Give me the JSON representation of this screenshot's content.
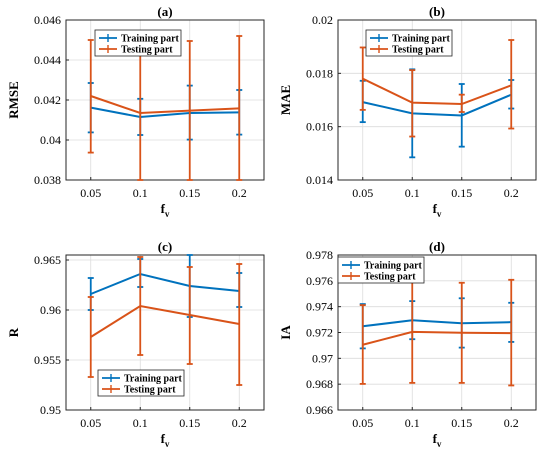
{
  "colors": {
    "training": "#0072bd",
    "testing": "#d95319",
    "axis": "#262626",
    "grid": "#dcdcdc"
  },
  "chart_data": [
    {
      "type": "line",
      "title": "(a)",
      "xlabel": "f",
      "xlabel_sub": "v",
      "ylabel": "RMSE",
      "x": [
        0.05,
        0.1,
        0.15,
        0.2
      ],
      "xticks": [
        "0.05",
        "0.1",
        "0.15",
        "0.2"
      ],
      "xlim": [
        0.025,
        0.225
      ],
      "ylim": [
        0.038,
        0.046
      ],
      "yticks": [
        0.038,
        0.04,
        0.042,
        0.044,
        0.046
      ],
      "yticklabels": [
        "0.038",
        "0.04",
        "0.042",
        "0.044",
        "0.046"
      ],
      "grid": true,
      "legend_position": "top-left",
      "series": [
        {
          "name": "Training part",
          "values": [
            0.04162,
            0.04115,
            0.04135,
            0.04138
          ],
          "err_low": [
            0.04038,
            0.04025,
            0.04002,
            0.04027
          ],
          "err_high": [
            0.04285,
            0.04206,
            0.04272,
            0.0425
          ]
        },
        {
          "name": "Testing part",
          "values": [
            0.0422,
            0.04135,
            0.04147,
            0.04158
          ],
          "err_low": [
            0.03937,
            0.038,
            0.038,
            0.038
          ],
          "err_high": [
            0.045,
            0.045,
            0.04495,
            0.0452
          ]
        }
      ]
    },
    {
      "type": "line",
      "title": "(b)",
      "xlabel": "f",
      "xlabel_sub": "v",
      "ylabel": "MAE",
      "x": [
        0.05,
        0.1,
        0.15,
        0.2
      ],
      "xticks": [
        "0.05",
        "0.1",
        "0.15",
        "0.2"
      ],
      "xlim": [
        0.025,
        0.225
      ],
      "ylim": [
        0.014,
        0.02
      ],
      "yticks": [
        0.014,
        0.016,
        0.018,
        0.02
      ],
      "yticklabels": [
        "0.014",
        "0.016",
        "0.018",
        "0.02"
      ],
      "grid": true,
      "legend_position": "top-left",
      "series": [
        {
          "name": "Training part",
          "values": [
            0.01692,
            0.0165,
            0.01642,
            0.0172
          ],
          "err_low": [
            0.01617,
            0.01485,
            0.01525,
            0.01668
          ],
          "err_high": [
            0.01772,
            0.01815,
            0.0176,
            0.01775
          ]
        },
        {
          "name": "Testing part",
          "values": [
            0.0178,
            0.0169,
            0.01685,
            0.01755
          ],
          "err_low": [
            0.01663,
            0.01563,
            0.01655,
            0.01593
          ],
          "err_high": [
            0.01897,
            0.01812,
            0.0172,
            0.01925
          ]
        }
      ]
    },
    {
      "type": "line",
      "title": "(c)",
      "xlabel": "f",
      "xlabel_sub": "v",
      "ylabel": "R",
      "x": [
        0.05,
        0.1,
        0.15,
        0.2
      ],
      "xticks": [
        "0.05",
        "0.1",
        "0.15",
        "0.2"
      ],
      "xlim": [
        0.025,
        0.225
      ],
      "ylim": [
        0.95,
        0.9655
      ],
      "yticks": [
        0.95,
        0.955,
        0.96,
        0.965
      ],
      "yticklabels": [
        "0.95",
        "0.955",
        "0.96",
        "0.965"
      ],
      "grid": true,
      "legend_position": "bottom-center",
      "series": [
        {
          "name": "Training part",
          "values": [
            0.9616,
            0.9636,
            0.9624,
            0.9619
          ],
          "err_low": [
            0.96,
            0.9623,
            0.9593,
            0.9603
          ],
          "err_high": [
            0.9632,
            0.9651,
            0.9655,
            0.9637
          ]
        },
        {
          "name": "Testing part",
          "values": [
            0.9573,
            0.9604,
            0.9595,
            0.9586
          ],
          "err_low": [
            0.9533,
            0.9555,
            0.9546,
            0.9525
          ],
          "err_high": [
            0.9613,
            0.9653,
            0.9643,
            0.9646
          ]
        }
      ]
    },
    {
      "type": "line",
      "title": "(d)",
      "xlabel": "f",
      "xlabel_sub": "v",
      "ylabel": "IA",
      "x": [
        0.05,
        0.1,
        0.15,
        0.2
      ],
      "xticks": [
        "0.05",
        "0.1",
        "0.15",
        "0.2"
      ],
      "xlim": [
        0.025,
        0.225
      ],
      "ylim": [
        0.966,
        0.978
      ],
      "yticks": [
        0.966,
        0.968,
        0.97,
        0.972,
        0.974,
        0.976,
        0.978
      ],
      "yticklabels": [
        "0.966",
        "0.968",
        "0.97",
        "0.972",
        "0.974",
        "0.976",
        "0.978"
      ],
      "grid": true,
      "legend_position": "top-left",
      "series": [
        {
          "name": "Training part",
          "values": [
            0.97248,
            0.97295,
            0.97272,
            0.9728
          ],
          "err_low": [
            0.97077,
            0.97148,
            0.97083,
            0.97127
          ],
          "err_high": [
            0.9742,
            0.97443,
            0.97465,
            0.9743
          ]
        },
        {
          "name": "Testing part",
          "values": [
            0.97105,
            0.97205,
            0.97198,
            0.97195
          ],
          "err_low": [
            0.96802,
            0.9681,
            0.9681,
            0.9679
          ],
          "err_high": [
            0.97412,
            0.97603,
            0.97585,
            0.97608
          ]
        }
      ]
    }
  ]
}
